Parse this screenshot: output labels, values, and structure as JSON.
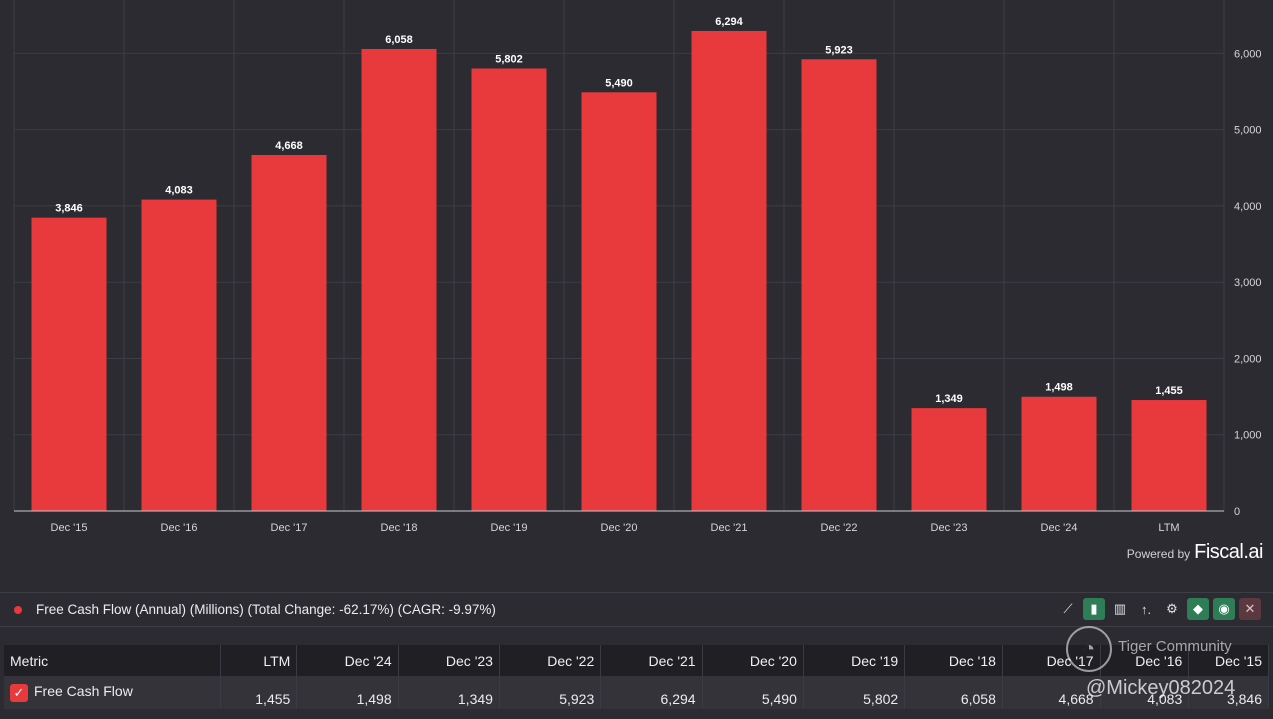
{
  "chart_data": {
    "type": "bar",
    "categories": [
      "Dec '15",
      "Dec '16",
      "Dec '17",
      "Dec '18",
      "Dec '19",
      "Dec '20",
      "Dec '21",
      "Dec '22",
      "Dec '23",
      "Dec '24",
      "LTM"
    ],
    "values": [
      3846,
      4083,
      4668,
      6058,
      5802,
      5490,
      6294,
      5923,
      1349,
      1498,
      1455
    ],
    "value_labels": [
      "3,846",
      "4,083",
      "4,668",
      "6,058",
      "5,802",
      "5,490",
      "6,294",
      "5,923",
      "1,349",
      "1,498",
      "1,455"
    ],
    "yticks": [
      0,
      1000,
      2000,
      3000,
      4000,
      5000,
      6000
    ],
    "ytick_labels": [
      "0",
      "1,000",
      "2,000",
      "3,000",
      "4,000",
      "5,000",
      "6,000"
    ],
    "ylim": [
      0,
      6700
    ],
    "y_axis_side": "right",
    "grid": true,
    "bar_color": "#e8393c"
  },
  "branding": {
    "powered": "Powered by",
    "brand": "Fiscal.ai"
  },
  "legend": {
    "dot_color": "#e8393c",
    "text": "Free Cash Flow (Annual) (Millions) (Total Change: -62.17%) (CAGR: -9.97%)"
  },
  "toolbar": [
    {
      "name": "line-chart-icon",
      "glyph": "⟋",
      "style": ""
    },
    {
      "name": "bar-chart-icon",
      "glyph": "▮",
      "style": "green"
    },
    {
      "name": "stacked-bar-icon",
      "glyph": "▥",
      "style": ""
    },
    {
      "name": "sort-icon",
      "glyph": "↑.",
      "style": ""
    },
    {
      "name": "gear-icon",
      "glyph": "⚙",
      "style": ""
    },
    {
      "name": "tag-icon",
      "glyph": "◆",
      "style": "green"
    },
    {
      "name": "eye-icon",
      "glyph": "◉",
      "style": "green"
    },
    {
      "name": "close-icon",
      "glyph": "✕",
      "style": "red"
    }
  ],
  "table": {
    "headers": [
      "Metric",
      "LTM",
      "Dec '24",
      "Dec '23",
      "Dec '22",
      "Dec '21",
      "Dec '20",
      "Dec '19",
      "Dec '18",
      "Dec '17",
      "Dec '16",
      "Dec '15"
    ],
    "row": {
      "label": "Free Cash Flow",
      "values": [
        "1,455",
        "1,498",
        "1,349",
        "5,923",
        "6,294",
        "5,490",
        "5,802",
        "6,058",
        "4,668",
        "4,083",
        "3,846"
      ]
    }
  },
  "watermark": {
    "title": "Tiger Community",
    "handle": "@Mickey082024"
  }
}
